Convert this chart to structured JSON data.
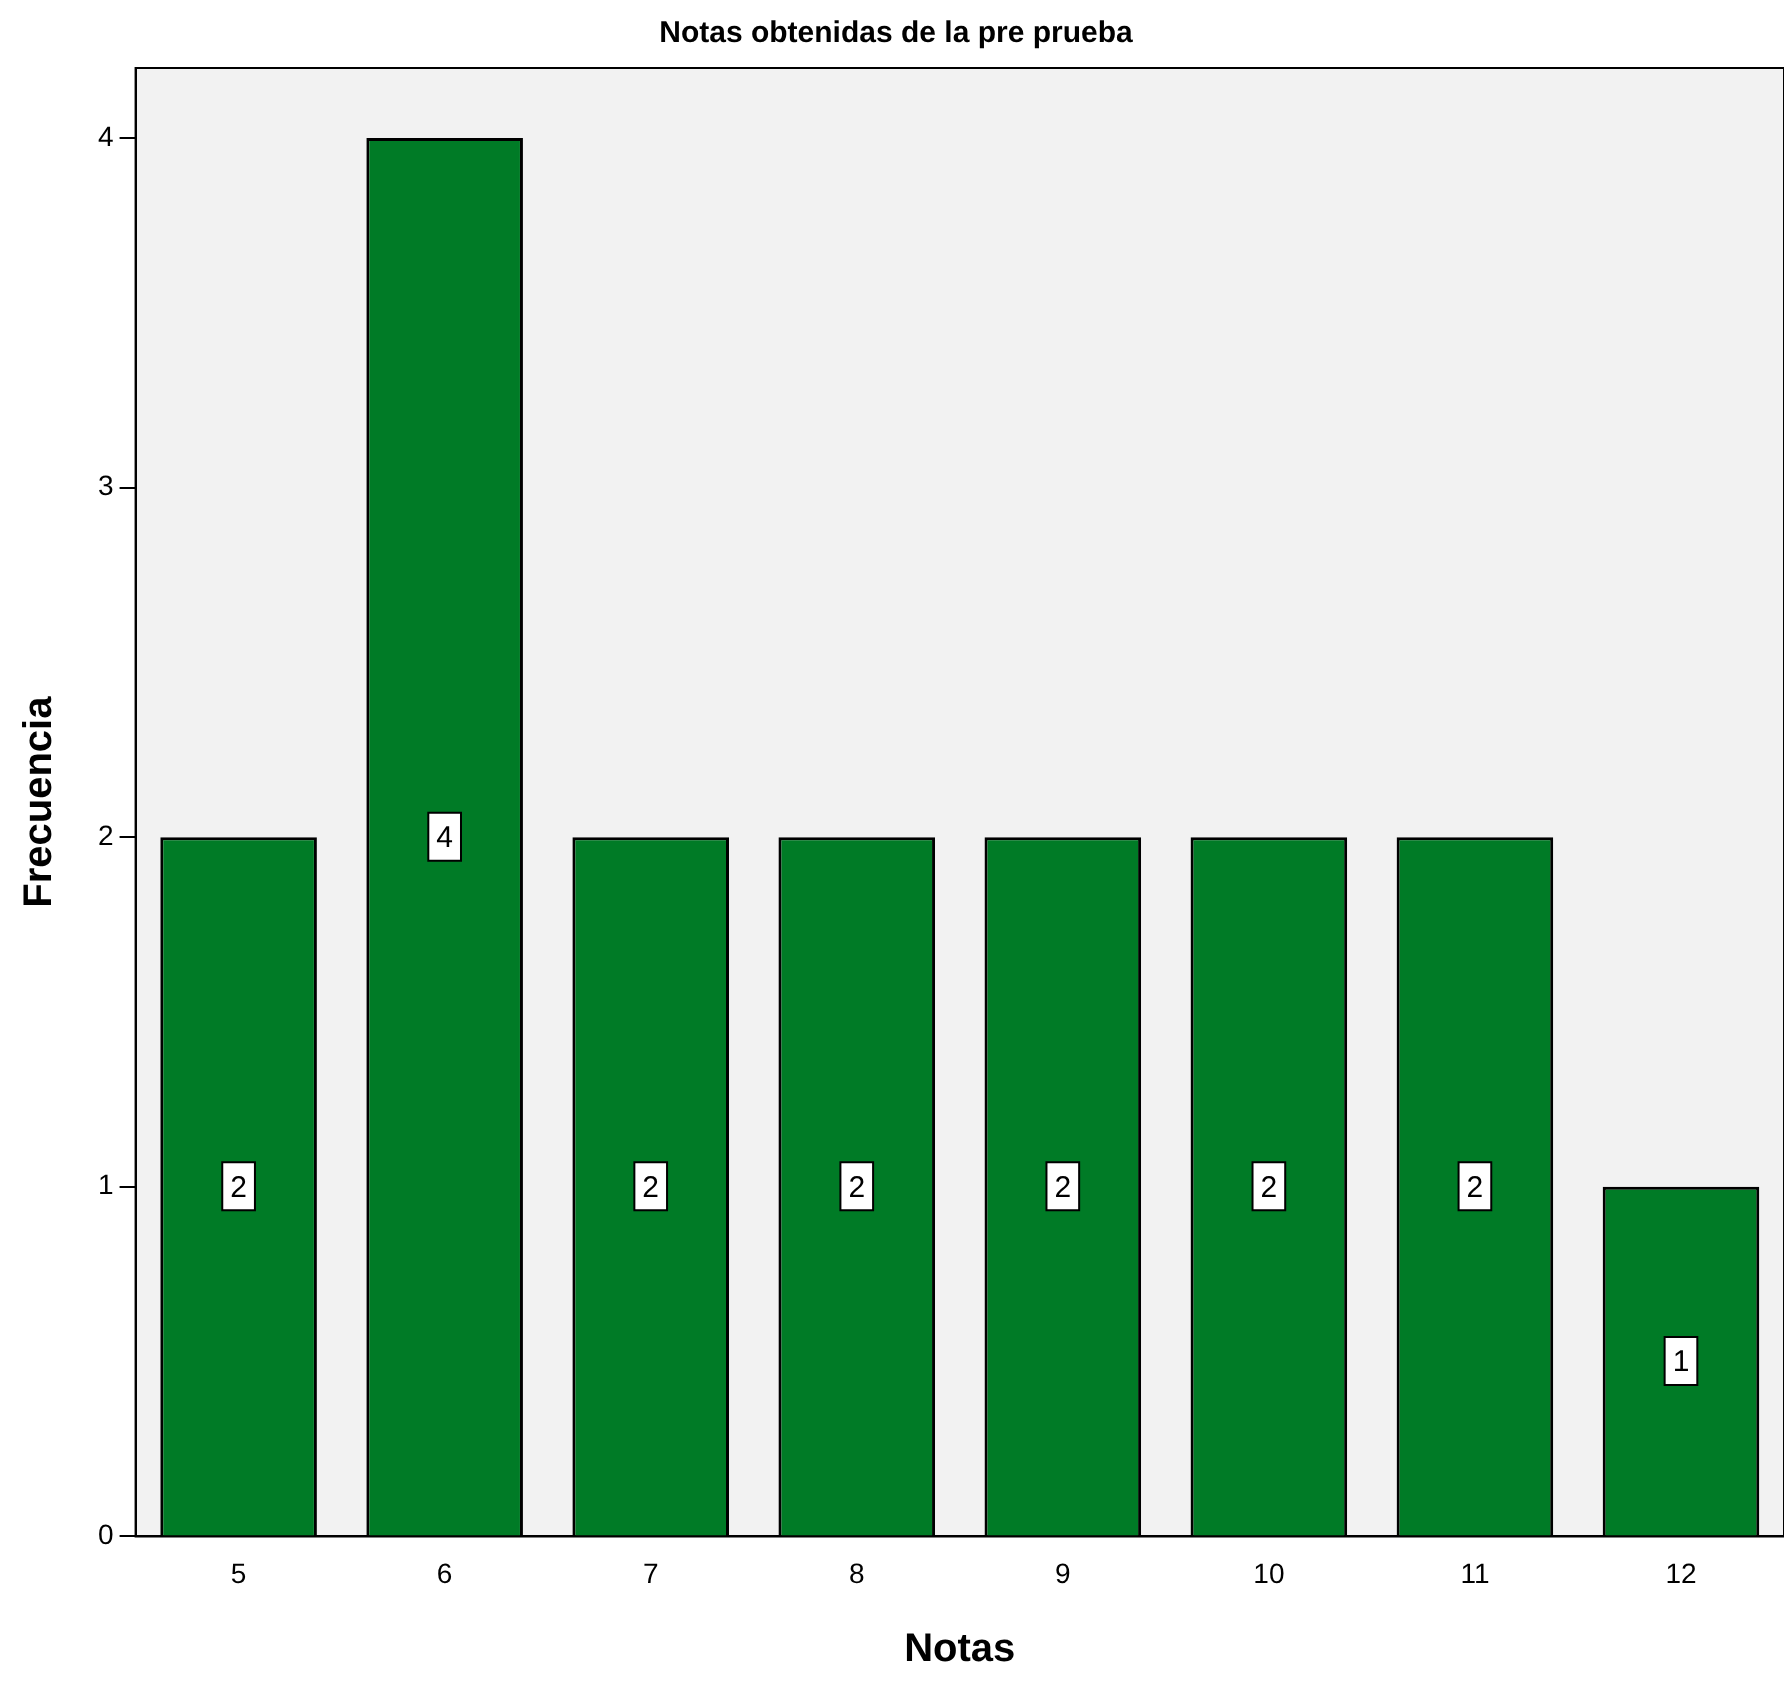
{
  "chart_data": {
    "type": "bar",
    "title": "Notas obtenidas de la pre prueba",
    "xlabel": "Notas",
    "ylabel": "Frecuencia",
    "categories": [
      "5",
      "6",
      "7",
      "8",
      "9",
      "10",
      "11",
      "12"
    ],
    "values": [
      2,
      4,
      2,
      2,
      2,
      2,
      2,
      1
    ],
    "color": "#007b26",
    "ylim": [
      0,
      4.2
    ],
    "yticks": [
      0,
      1,
      2,
      3,
      4
    ],
    "grid": false,
    "legend": false,
    "data_labels": true
  }
}
